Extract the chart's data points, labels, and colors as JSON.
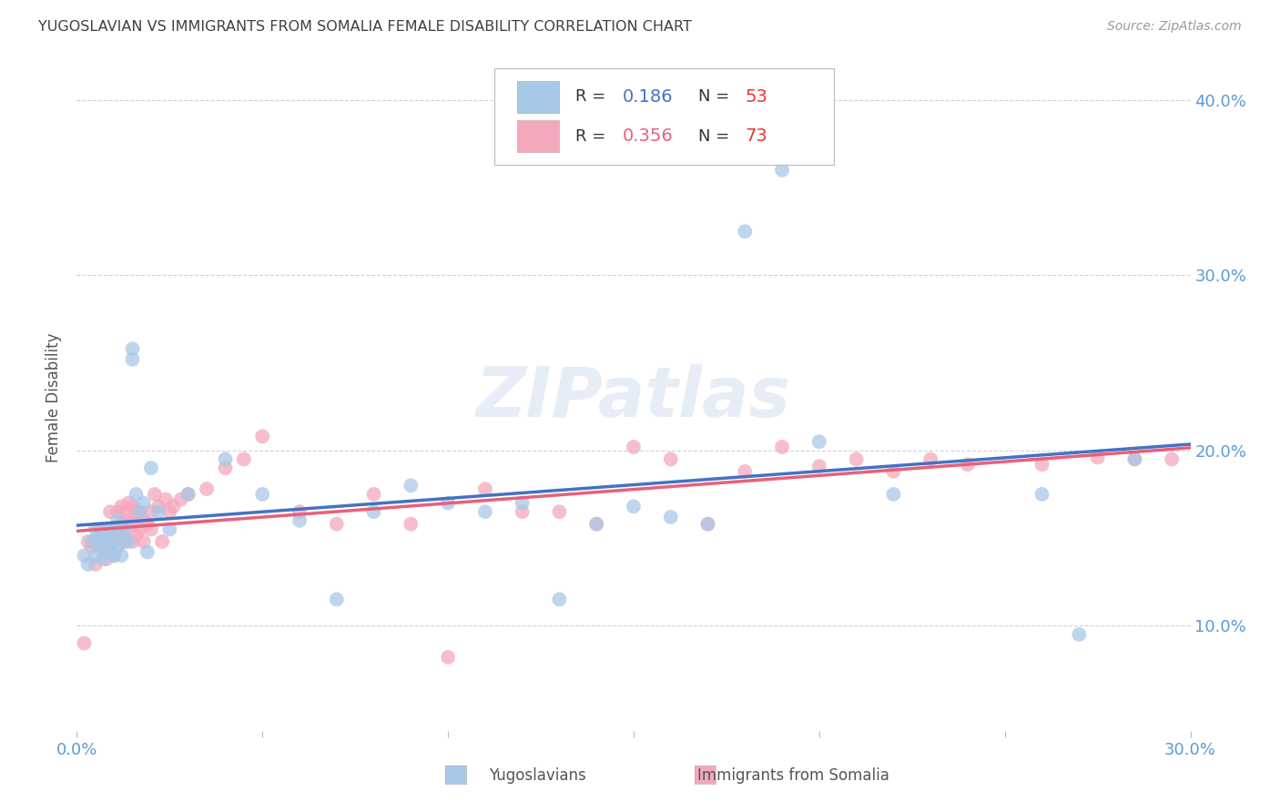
{
  "title": "YUGOSLAVIAN VS IMMIGRANTS FROM SOMALIA FEMALE DISABILITY CORRELATION CHART",
  "source": "Source: ZipAtlas.com",
  "ylabel_label": "Female Disability",
  "xlim": [
    0.0,
    0.3
  ],
  "ylim": [
    0.04,
    0.42
  ],
  "color_blue": "#A8C8E8",
  "color_pink": "#F4A8BC",
  "color_blue_line": "#4472C4",
  "color_pink_line": "#E8607A",
  "color_axis": "#5B9BD5",
  "color_title": "#404040",
  "color_source": "#999999",
  "legend_R_blue": "0.186",
  "legend_N_blue": "53",
  "legend_R_pink": "0.356",
  "legend_N_pink": "73",
  "blue_x": [
    0.002,
    0.003,
    0.004,
    0.005,
    0.005,
    0.006,
    0.006,
    0.007,
    0.007,
    0.008,
    0.008,
    0.009,
    0.009,
    0.01,
    0.01,
    0.01,
    0.011,
    0.011,
    0.012,
    0.012,
    0.013,
    0.014,
    0.015,
    0.015,
    0.016,
    0.017,
    0.018,
    0.019,
    0.02,
    0.022,
    0.025,
    0.03,
    0.04,
    0.05,
    0.06,
    0.07,
    0.08,
    0.09,
    0.1,
    0.11,
    0.12,
    0.13,
    0.14,
    0.15,
    0.16,
    0.17,
    0.18,
    0.19,
    0.2,
    0.22,
    0.26,
    0.27,
    0.285
  ],
  "blue_y": [
    0.14,
    0.135,
    0.148,
    0.14,
    0.155,
    0.145,
    0.15,
    0.138,
    0.152,
    0.145,
    0.148,
    0.142,
    0.155,
    0.14,
    0.148,
    0.155,
    0.145,
    0.16,
    0.15,
    0.14,
    0.155,
    0.148,
    0.252,
    0.258,
    0.175,
    0.165,
    0.17,
    0.142,
    0.19,
    0.165,
    0.155,
    0.175,
    0.195,
    0.175,
    0.16,
    0.115,
    0.165,
    0.18,
    0.17,
    0.165,
    0.17,
    0.115,
    0.158,
    0.168,
    0.162,
    0.158,
    0.325,
    0.36,
    0.205,
    0.175,
    0.175,
    0.095,
    0.195
  ],
  "pink_x": [
    0.002,
    0.003,
    0.004,
    0.005,
    0.005,
    0.006,
    0.006,
    0.007,
    0.007,
    0.008,
    0.008,
    0.009,
    0.009,
    0.009,
    0.01,
    0.01,
    0.011,
    0.011,
    0.012,
    0.012,
    0.012,
    0.013,
    0.013,
    0.013,
    0.014,
    0.014,
    0.015,
    0.015,
    0.015,
    0.016,
    0.016,
    0.017,
    0.017,
    0.018,
    0.018,
    0.019,
    0.02,
    0.02,
    0.021,
    0.022,
    0.023,
    0.024,
    0.025,
    0.026,
    0.028,
    0.03,
    0.035,
    0.04,
    0.045,
    0.05,
    0.06,
    0.07,
    0.08,
    0.09,
    0.1,
    0.11,
    0.12,
    0.13,
    0.14,
    0.15,
    0.16,
    0.17,
    0.18,
    0.19,
    0.2,
    0.21,
    0.22,
    0.23,
    0.24,
    0.26,
    0.275,
    0.285,
    0.295
  ],
  "pink_y": [
    0.09,
    0.148,
    0.145,
    0.148,
    0.135,
    0.148,
    0.155,
    0.145,
    0.155,
    0.148,
    0.138,
    0.145,
    0.155,
    0.165,
    0.14,
    0.148,
    0.155,
    0.165,
    0.148,
    0.158,
    0.168,
    0.155,
    0.165,
    0.148,
    0.16,
    0.17,
    0.148,
    0.158,
    0.168,
    0.152,
    0.165,
    0.155,
    0.165,
    0.148,
    0.16,
    0.158,
    0.155,
    0.165,
    0.175,
    0.168,
    0.148,
    0.172,
    0.165,
    0.168,
    0.172,
    0.175,
    0.178,
    0.19,
    0.195,
    0.208,
    0.165,
    0.158,
    0.175,
    0.158,
    0.082,
    0.178,
    0.165,
    0.165,
    0.158,
    0.202,
    0.195,
    0.158,
    0.188,
    0.202,
    0.191,
    0.195,
    0.188,
    0.195,
    0.192,
    0.192,
    0.196,
    0.195,
    0.195
  ]
}
